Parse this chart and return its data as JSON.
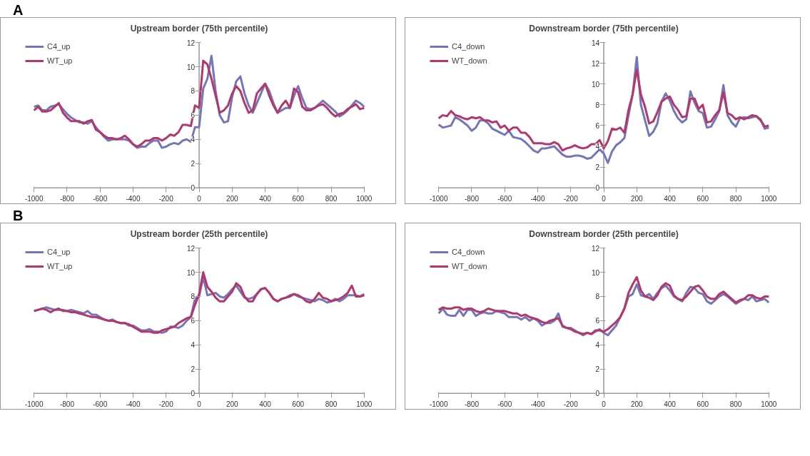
{
  "chart_data": [
    {
      "type": "line",
      "title": "Upstream border (75th percentile)",
      "annotations": [
        "A"
      ],
      "legend": "top left",
      "grid": false,
      "xlim": [
        -1000,
        1000
      ],
      "ylim": [
        0,
        12
      ],
      "xticks": [
        -1000,
        -800,
        -600,
        -400,
        -200,
        0,
        200,
        400,
        600,
        800,
        1000
      ],
      "yticks": [
        0,
        2,
        4,
        6,
        8,
        10,
        12
      ],
      "x": [
        -1000,
        -975,
        -950,
        -925,
        -900,
        -875,
        -850,
        -825,
        -800,
        -775,
        -750,
        -725,
        -700,
        -675,
        -650,
        -625,
        -600,
        -575,
        -550,
        -525,
        -500,
        -475,
        -450,
        -425,
        -400,
        -375,
        -350,
        -325,
        -300,
        -275,
        -250,
        -225,
        -200,
        -175,
        -150,
        -125,
        -100,
        -75,
        -50,
        -25,
        0,
        25,
        50,
        75,
        100,
        125,
        150,
        175,
        200,
        225,
        250,
        275,
        300,
        325,
        350,
        375,
        400,
        425,
        450,
        475,
        500,
        525,
        550,
        575,
        600,
        625,
        650,
        675,
        700,
        725,
        750,
        775,
        800,
        825,
        850,
        875,
        900,
        925,
        950,
        975,
        1000
      ],
      "series": [
        {
          "name": "C4_up",
          "color": "#7476ba",
          "values": [
            6.7,
            6.8,
            6.4,
            6.4,
            6.7,
            6.8,
            6.9,
            6.5,
            6.1,
            5.8,
            5.6,
            5.4,
            5.4,
            5.3,
            5.5,
            5.0,
            4.6,
            4.2,
            3.9,
            4.0,
            4.0,
            4.0,
            4.0,
            3.9,
            3.6,
            3.3,
            3.4,
            3.4,
            3.7,
            3.9,
            3.9,
            3.3,
            3.4,
            3.6,
            3.7,
            3.6,
            3.9,
            4.0,
            3.8,
            5.0,
            5.0,
            8.2,
            9.0,
            10.9,
            8.0,
            6.0,
            5.4,
            5.5,
            7.5,
            8.8,
            9.2,
            7.8,
            6.8,
            6.2,
            7.0,
            7.8,
            8.6,
            8.0,
            7.0,
            6.2,
            6.4,
            6.6,
            6.6,
            7.6,
            8.4,
            7.4,
            6.6,
            6.5,
            6.6,
            6.9,
            7.2,
            6.9,
            6.6,
            6.3,
            5.9,
            6.1,
            6.4,
            6.8,
            7.2,
            7.0,
            6.7
          ]
        },
        {
          "name": "WT_up",
          "color": "#b3376b",
          "values": [
            6.4,
            6.7,
            6.3,
            6.3,
            6.4,
            6.7,
            7.0,
            6.2,
            5.8,
            5.5,
            5.5,
            5.5,
            5.3,
            5.5,
            5.6,
            4.8,
            4.6,
            4.3,
            4.1,
            4.1,
            4.0,
            4.1,
            4.3,
            4.0,
            3.6,
            3.4,
            3.6,
            3.9,
            3.9,
            4.1,
            4.1,
            3.9,
            4.1,
            4.4,
            4.3,
            4.6,
            5.2,
            5.2,
            5.1,
            6.8,
            6.6,
            10.5,
            10.2,
            9.0,
            7.6,
            6.2,
            6.4,
            6.8,
            7.8,
            8.4,
            8.0,
            7.0,
            6.2,
            6.4,
            7.8,
            8.2,
            8.6,
            7.6,
            6.8,
            6.2,
            6.8,
            7.2,
            6.6,
            8.2,
            7.9,
            6.7,
            6.4,
            6.4,
            6.6,
            6.8,
            6.9,
            6.6,
            6.2,
            5.9,
            6.1,
            6.2,
            6.5,
            6.7,
            6.9,
            6.5,
            6.6
          ]
        }
      ]
    },
    {
      "type": "line",
      "title": "Downstream border (75th percentile)",
      "legend": "top left",
      "grid": false,
      "xlim": [
        -1000,
        1000
      ],
      "ylim": [
        0,
        14
      ],
      "xticks": [
        -1000,
        -800,
        -600,
        -400,
        -200,
        0,
        200,
        400,
        600,
        800,
        1000
      ],
      "yticks": [
        0,
        2,
        4,
        6,
        8,
        10,
        12,
        14
      ],
      "x": [
        -1000,
        -975,
        -950,
        -925,
        -900,
        -875,
        -850,
        -825,
        -800,
        -775,
        -750,
        -725,
        -700,
        -675,
        -650,
        -625,
        -600,
        -575,
        -550,
        -525,
        -500,
        -475,
        -450,
        -425,
        -400,
        -375,
        -350,
        -325,
        -300,
        -275,
        -250,
        -225,
        -200,
        -175,
        -150,
        -125,
        -100,
        -75,
        -50,
        -25,
        0,
        25,
        50,
        75,
        100,
        125,
        150,
        175,
        200,
        225,
        250,
        275,
        300,
        325,
        350,
        375,
        400,
        425,
        450,
        475,
        500,
        525,
        550,
        575,
        600,
        625,
        650,
        675,
        700,
        725,
        750,
        775,
        800,
        825,
        850,
        875,
        900,
        925,
        950,
        975,
        1000
      ],
      "series": [
        {
          "name": "C4_down",
          "color": "#7476ba",
          "values": [
            6.1,
            5.8,
            5.9,
            6.0,
            6.8,
            6.6,
            6.3,
            6.0,
            5.5,
            5.8,
            6.5,
            6.5,
            6.2,
            5.7,
            5.5,
            5.3,
            5.1,
            5.5,
            4.9,
            4.8,
            4.7,
            4.4,
            4.0,
            3.6,
            3.4,
            3.8,
            3.8,
            3.9,
            4.0,
            3.6,
            3.2,
            3.0,
            3.0,
            3.1,
            3.1,
            3.0,
            2.8,
            2.9,
            3.3,
            3.7,
            3.3,
            2.4,
            3.5,
            4.1,
            4.4,
            4.8,
            7.0,
            9.0,
            12.6,
            8.0,
            6.5,
            5.0,
            5.4,
            6.2,
            8.3,
            9.1,
            8.4,
            7.4,
            6.7,
            6.3,
            6.6,
            9.3,
            8.2,
            7.4,
            7.2,
            5.8,
            5.9,
            6.6,
            7.4,
            9.9,
            7.0,
            6.3,
            5.9,
            6.7,
            6.8,
            6.7,
            6.8,
            6.9,
            6.6,
            5.7,
            5.8
          ]
        },
        {
          "name": "WT_down",
          "color": "#b3376b",
          "values": [
            6.7,
            7.0,
            6.9,
            7.4,
            7.0,
            6.9,
            6.7,
            6.6,
            6.8,
            6.7,
            6.8,
            6.5,
            6.5,
            6.3,
            6.4,
            5.8,
            6.0,
            5.5,
            5.8,
            5.8,
            5.3,
            5.3,
            4.9,
            4.3,
            4.3,
            4.3,
            4.2,
            4.2,
            4.4,
            4.2,
            3.6,
            3.8,
            3.9,
            4.1,
            3.9,
            3.8,
            3.9,
            4.2,
            4.2,
            4.6,
            3.8,
            4.5,
            5.7,
            5.6,
            5.8,
            5.3,
            7.5,
            9.0,
            11.4,
            9.0,
            7.8,
            6.2,
            6.4,
            7.3,
            8.3,
            8.6,
            8.8,
            8.0,
            7.5,
            6.8,
            6.9,
            8.6,
            8.6,
            7.6,
            8.0,
            6.3,
            6.4,
            7.0,
            7.5,
            9.2,
            7.2,
            7.0,
            6.6,
            6.8,
            6.6,
            6.8,
            7.0,
            6.9,
            6.5,
            5.9,
            6.0
          ]
        }
      ]
    },
    {
      "type": "line",
      "title": "Upstream border (25th percentile)",
      "annotations": [
        "B"
      ],
      "legend": "top left",
      "grid": false,
      "xlim": [
        -1000,
        1000
      ],
      "ylim": [
        0,
        12
      ],
      "xticks": [
        -1000,
        -800,
        -600,
        -400,
        -200,
        0,
        200,
        400,
        600,
        800,
        1000
      ],
      "yticks": [
        0,
        2,
        4,
        6,
        8,
        10,
        12
      ],
      "x": [
        -1000,
        -975,
        -950,
        -925,
        -900,
        -875,
        -850,
        -825,
        -800,
        -775,
        -750,
        -725,
        -700,
        -675,
        -650,
        -625,
        -600,
        -575,
        -550,
        -525,
        -500,
        -475,
        -450,
        -425,
        -400,
        -375,
        -350,
        -325,
        -300,
        -275,
        -250,
        -225,
        -200,
        -175,
        -150,
        -125,
        -100,
        -75,
        -50,
        -25,
        0,
        25,
        50,
        75,
        100,
        125,
        150,
        175,
        200,
        225,
        250,
        275,
        300,
        325,
        350,
        375,
        400,
        425,
        450,
        475,
        500,
        525,
        550,
        575,
        600,
        625,
        650,
        675,
        700,
        725,
        750,
        775,
        800,
        825,
        850,
        875,
        900,
        925,
        950,
        975,
        1000
      ],
      "series": [
        {
          "name": "C4_up",
          "color": "#7476ba",
          "values": [
            6.8,
            6.9,
            7.0,
            7.1,
            7.0,
            6.9,
            6.9,
            6.9,
            6.8,
            6.9,
            6.8,
            6.7,
            6.6,
            6.8,
            6.5,
            6.5,
            6.3,
            6.1,
            6.0,
            6.1,
            5.9,
            5.8,
            5.8,
            5.6,
            5.6,
            5.4,
            5.2,
            5.2,
            5.3,
            5.1,
            5.1,
            5.0,
            5.1,
            5.5,
            5.5,
            5.4,
            5.6,
            6.0,
            6.3,
            7.8,
            8.0,
            9.6,
            8.1,
            8.2,
            8.3,
            8.0,
            7.9,
            8.2,
            8.6,
            8.9,
            8.4,
            7.9,
            7.8,
            7.9,
            8.2,
            8.6,
            8.7,
            8.3,
            7.8,
            7.6,
            7.8,
            7.9,
            8.1,
            8.2,
            8.0,
            7.9,
            7.8,
            7.7,
            7.6,
            7.8,
            7.7,
            7.5,
            7.6,
            7.8,
            7.6,
            7.8,
            8.1,
            8.1,
            8.1,
            8.0,
            8.2
          ]
        },
        {
          "name": "WT_up",
          "color": "#b3376b",
          "values": [
            6.8,
            6.9,
            7.0,
            6.9,
            6.7,
            6.9,
            7.0,
            6.8,
            6.8,
            6.7,
            6.7,
            6.6,
            6.5,
            6.4,
            6.3,
            6.3,
            6.2,
            6.1,
            6.0,
            6.0,
            5.9,
            5.8,
            5.8,
            5.7,
            5.5,
            5.3,
            5.1,
            5.1,
            5.1,
            5.0,
            5.0,
            5.2,
            5.3,
            5.4,
            5.5,
            5.8,
            6.0,
            6.2,
            6.3,
            7.3,
            8.2,
            10.0,
            8.8,
            8.4,
            7.9,
            7.6,
            7.6,
            8.0,
            8.4,
            9.1,
            8.8,
            8.0,
            7.6,
            7.6,
            8.2,
            8.6,
            8.7,
            8.3,
            7.8,
            7.6,
            7.8,
            7.9,
            8.0,
            8.2,
            8.1,
            7.9,
            7.6,
            7.5,
            7.8,
            8.3,
            7.9,
            7.8,
            7.6,
            7.7,
            7.8,
            8.0,
            8.3,
            8.9,
            8.0,
            8.0,
            8.1
          ]
        }
      ]
    },
    {
      "type": "line",
      "title": "Downstream border (25th percentile)",
      "legend": "top left",
      "grid": false,
      "xlim": [
        -1000,
        1000
      ],
      "ylim": [
        0,
        12
      ],
      "xticks": [
        -1000,
        -800,
        -600,
        -400,
        -200,
        0,
        200,
        400,
        600,
        800,
        1000
      ],
      "yticks": [
        0,
        2,
        4,
        6,
        8,
        10,
        12
      ],
      "x": [
        -1000,
        -975,
        -950,
        -925,
        -900,
        -875,
        -850,
        -825,
        -800,
        -775,
        -750,
        -725,
        -700,
        -675,
        -650,
        -625,
        -600,
        -575,
        -550,
        -525,
        -500,
        -475,
        -450,
        -425,
        -400,
        -375,
        -350,
        -325,
        -300,
        -275,
        -250,
        -225,
        -200,
        -175,
        -150,
        -125,
        -100,
        -75,
        -50,
        -25,
        0,
        25,
        50,
        75,
        100,
        125,
        150,
        175,
        200,
        225,
        250,
        275,
        300,
        325,
        350,
        375,
        400,
        425,
        450,
        475,
        500,
        525,
        550,
        575,
        600,
        625,
        650,
        675,
        700,
        725,
        750,
        775,
        800,
        825,
        850,
        875,
        900,
        925,
        950,
        975,
        1000
      ],
      "series": [
        {
          "name": "C4_down",
          "color": "#7476ba",
          "values": [
            6.6,
            7.0,
            6.5,
            6.4,
            6.4,
            6.9,
            6.4,
            6.9,
            6.9,
            6.4,
            6.6,
            6.7,
            6.6,
            6.6,
            6.8,
            6.7,
            6.6,
            6.3,
            6.3,
            6.3,
            6.1,
            6.3,
            6.0,
            6.2,
            6.0,
            5.6,
            5.8,
            5.8,
            6.0,
            6.6,
            5.5,
            5.4,
            5.4,
            5.2,
            5.0,
            4.8,
            5.0,
            4.9,
            5.1,
            5.3,
            5.0,
            4.8,
            5.2,
            5.6,
            6.3,
            7.0,
            8.0,
            8.2,
            9.0,
            8.1,
            8.0,
            8.2,
            7.8,
            8.3,
            8.7,
            8.9,
            8.5,
            8.0,
            7.8,
            7.6,
            8.3,
            8.8,
            8.7,
            8.3,
            8.2,
            7.6,
            7.4,
            7.7,
            8.0,
            8.2,
            8.0,
            7.7,
            7.4,
            7.6,
            7.8,
            7.7,
            8.0,
            7.6,
            7.7,
            7.8,
            7.5
          ]
        },
        {
          "name": "WT_down",
          "color": "#b3376b",
          "values": [
            6.9,
            7.1,
            7.0,
            7.0,
            7.1,
            7.1,
            6.9,
            7.0,
            7.0,
            6.8,
            6.7,
            6.8,
            7.0,
            6.9,
            6.8,
            6.8,
            6.8,
            6.7,
            6.6,
            6.6,
            6.4,
            6.5,
            6.3,
            6.2,
            6.1,
            5.9,
            5.8,
            6.0,
            6.1,
            6.2,
            5.6,
            5.4,
            5.3,
            5.1,
            5.0,
            4.9,
            5.0,
            4.9,
            5.2,
            5.2,
            5.1,
            5.3,
            5.6,
            5.9,
            6.3,
            7.0,
            8.3,
            9.0,
            9.6,
            8.5,
            8.0,
            7.9,
            7.7,
            8.1,
            8.8,
            9.1,
            8.9,
            8.1,
            7.8,
            7.7,
            8.0,
            8.4,
            8.8,
            8.9,
            8.5,
            8.0,
            7.8,
            7.8,
            8.2,
            8.4,
            8.1,
            7.8,
            7.5,
            7.7,
            7.8,
            8.1,
            8.1,
            7.9,
            7.8,
            8.0,
            8.0
          ]
        }
      ]
    }
  ]
}
